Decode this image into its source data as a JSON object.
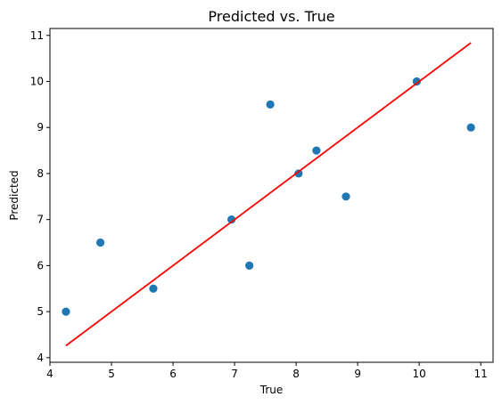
{
  "chart_data": {
    "type": "scatter",
    "title": "Predicted vs. True",
    "xlabel": "True",
    "ylabel": "Predicted",
    "xlim": [
      4.0,
      11.2
    ],
    "ylim": [
      3.9,
      11.15
    ],
    "x_ticks": [
      4,
      5,
      6,
      7,
      8,
      9,
      10,
      11
    ],
    "y_ticks": [
      4,
      5,
      6,
      7,
      8,
      9,
      10,
      11
    ],
    "grid": false,
    "series": [
      {
        "type": "scatter",
        "color": "#1f77b4",
        "points": [
          {
            "x": 4.26,
            "y": 5.0
          },
          {
            "x": 4.82,
            "y": 6.5
          },
          {
            "x": 5.68,
            "y": 5.5
          },
          {
            "x": 6.95,
            "y": 7.0
          },
          {
            "x": 7.24,
            "y": 6.0
          },
          {
            "x": 7.58,
            "y": 9.5
          },
          {
            "x": 8.04,
            "y": 8.0
          },
          {
            "x": 8.33,
            "y": 8.5
          },
          {
            "x": 8.81,
            "y": 7.5
          },
          {
            "x": 9.96,
            "y": 10.0
          },
          {
            "x": 10.84,
            "y": 9.0
          }
        ]
      },
      {
        "type": "line",
        "color": "#ff0000",
        "points": [
          {
            "x": 4.26,
            "y": 4.26
          },
          {
            "x": 10.84,
            "y": 10.84
          }
        ]
      }
    ]
  }
}
